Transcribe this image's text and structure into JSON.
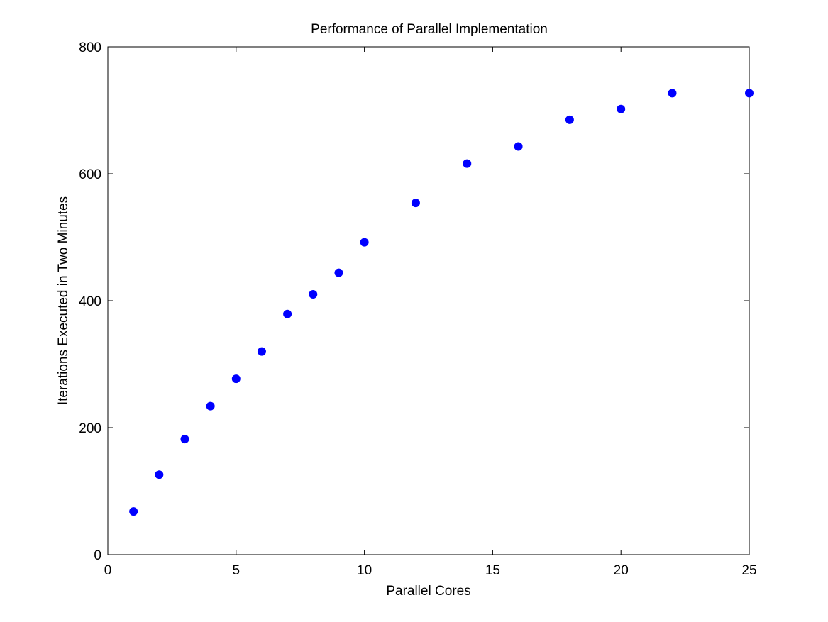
{
  "chart_data": {
    "type": "scatter",
    "title": "Performance of Parallel Implementation",
    "xlabel": "Parallel Cores",
    "ylabel": "Iterations Executed in Two Minutes",
    "xlim": [
      0,
      25
    ],
    "ylim": [
      0,
      800
    ],
    "xticks": [
      0,
      5,
      10,
      15,
      20,
      25
    ],
    "yticks": [
      0,
      200,
      400,
      600,
      800
    ],
    "grid": false,
    "legend": "none",
    "marker_color": "#0000ff",
    "series": [
      {
        "x": [
          1,
          2,
          3,
          4,
          5,
          6,
          7,
          8,
          9,
          10,
          12,
          14,
          16,
          18,
          20,
          22,
          25
        ],
        "y": [
          68,
          126,
          182,
          234,
          277,
          320,
          379,
          410,
          444,
          492,
          554,
          616,
          643,
          685,
          702,
          727,
          727
        ]
      }
    ]
  }
}
